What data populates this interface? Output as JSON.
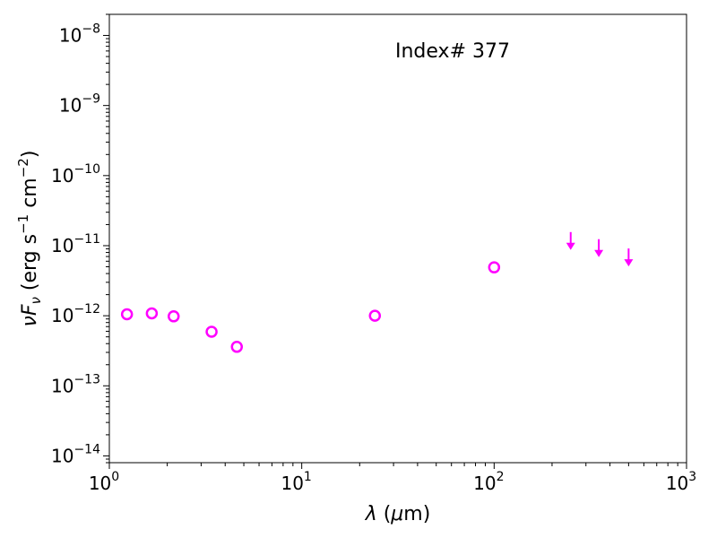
{
  "chart_data": {
    "type": "scatter",
    "title": "",
    "annotation": "Index# 377",
    "xlabel": "λ (μm)",
    "ylabel": "νF_ν (erg s^-1 cm^-2)",
    "xscale": "log",
    "yscale": "log",
    "xlim": [
      1,
      1000
    ],
    "ylim": [
      8e-15,
      2e-08
    ],
    "x_ticks": [
      {
        "value": 1,
        "base": "10",
        "exp": "0"
      },
      {
        "value": 10,
        "base": "10",
        "exp": "1"
      },
      {
        "value": 100,
        "base": "10",
        "exp": "2"
      },
      {
        "value": 1000,
        "base": "10",
        "exp": "3"
      }
    ],
    "y_ticks": [
      {
        "value": 1e-14,
        "base": "10",
        "exp": "−14"
      },
      {
        "value": 1e-13,
        "base": "10",
        "exp": "−13"
      },
      {
        "value": 1e-12,
        "base": "10",
        "exp": "−12"
      },
      {
        "value": 1e-11,
        "base": "10",
        "exp": "−11"
      },
      {
        "value": 1e-10,
        "base": "10",
        "exp": "−10"
      },
      {
        "value": 1e-09,
        "base": "10",
        "exp": "−9"
      },
      {
        "value": 1e-08,
        "base": "10",
        "exp": "−8"
      }
    ],
    "color": "#ff00ff",
    "series": [
      {
        "marker": "open-circle",
        "points": [
          {
            "x": 1.235,
            "y": 1.05e-12
          },
          {
            "x": 1.662,
            "y": 1.08e-12
          },
          {
            "x": 2.159,
            "y": 9.8e-13
          },
          {
            "x": 3.4,
            "y": 5.9e-13
          },
          {
            "x": 4.6,
            "y": 3.6e-13
          },
          {
            "x": 24,
            "y": 1e-12
          },
          {
            "x": 100,
            "y": 4.9e-12
          }
        ]
      },
      {
        "marker": "upper-limit-arrow",
        "points": [
          {
            "x": 250,
            "y": 1.2e-11
          },
          {
            "x": 350,
            "y": 9.5e-12
          },
          {
            "x": 500,
            "y": 7e-12
          }
        ]
      }
    ]
  }
}
